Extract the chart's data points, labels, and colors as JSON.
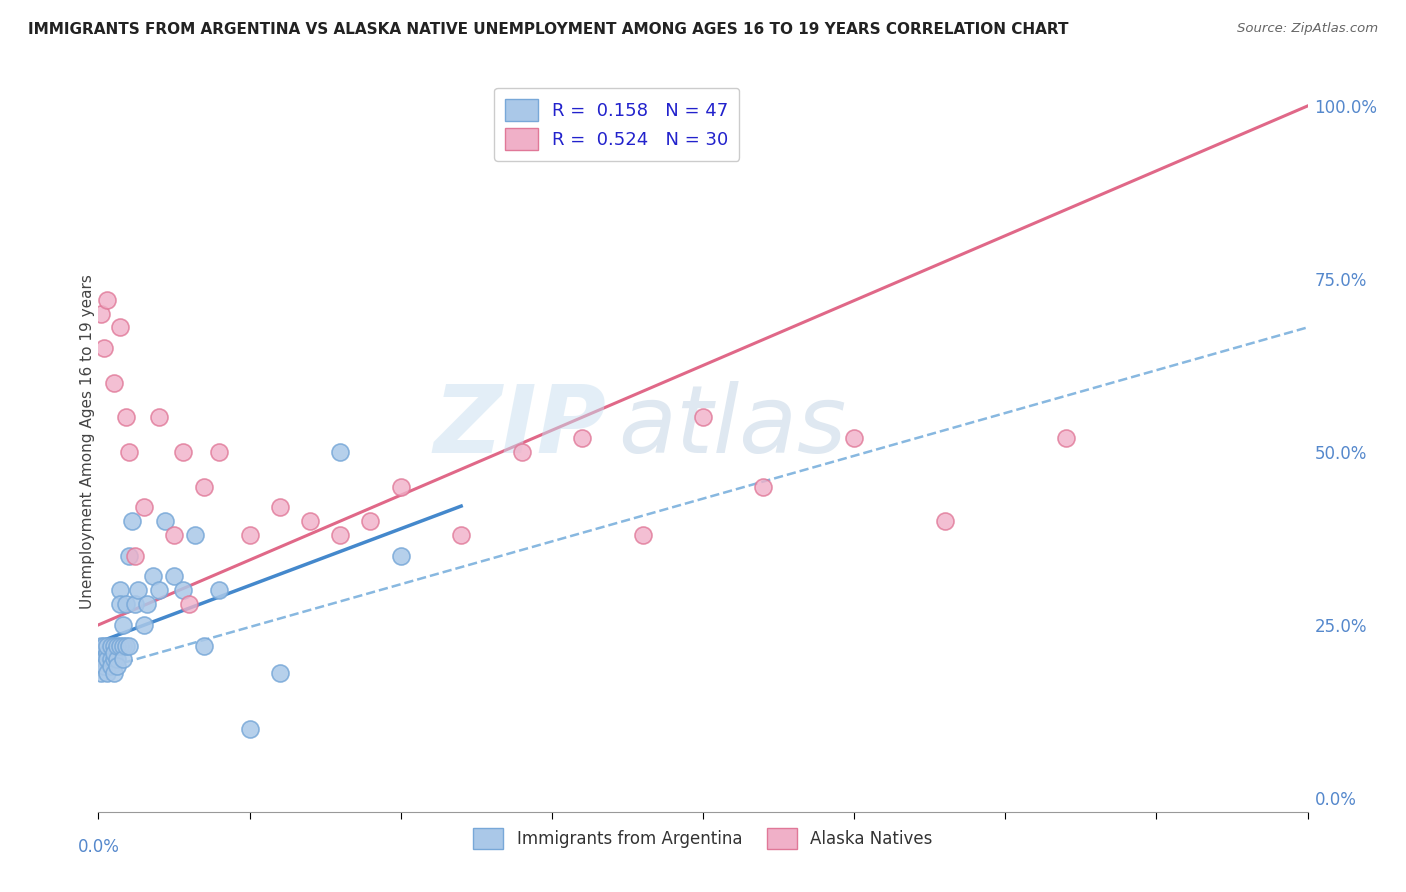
{
  "title": "IMMIGRANTS FROM ARGENTINA VS ALASKA NATIVE UNEMPLOYMENT AMONG AGES 16 TO 19 YEARS CORRELATION CHART",
  "source": "Source: ZipAtlas.com",
  "ylabel": "Unemployment Among Ages 16 to 19 years",
  "xlim": [
    0.0,
    0.4
  ],
  "ylim": [
    -0.02,
    1.05
  ],
  "right_yticks": [
    0.0,
    0.25,
    0.5,
    0.75,
    1.0
  ],
  "right_yticklabels": [
    "0.0%",
    "25.0%",
    "50.0%",
    "75.0%",
    "100.0%"
  ],
  "blue_color": "#aac8e8",
  "blue_edge": "#78a8d8",
  "pink_color": "#f0b0c8",
  "pink_edge": "#e07898",
  "blue_line_color": "#88b8e0",
  "pink_line_color": "#e06888",
  "R_blue": 0.158,
  "N_blue": 47,
  "R_pink": 0.524,
  "N_pink": 30,
  "grid_color": "#cccccc",
  "blue_scatter_x": [
    0.001,
    0.001,
    0.001,
    0.002,
    0.002,
    0.002,
    0.003,
    0.003,
    0.003,
    0.003,
    0.004,
    0.004,
    0.004,
    0.005,
    0.005,
    0.005,
    0.005,
    0.006,
    0.006,
    0.006,
    0.007,
    0.007,
    0.007,
    0.008,
    0.008,
    0.008,
    0.009,
    0.009,
    0.01,
    0.01,
    0.011,
    0.012,
    0.013,
    0.015,
    0.016,
    0.018,
    0.02,
    0.022,
    0.025,
    0.028,
    0.032,
    0.035,
    0.04,
    0.05,
    0.06,
    0.08,
    0.1
  ],
  "blue_scatter_y": [
    0.2,
    0.22,
    0.18,
    0.2,
    0.22,
    0.19,
    0.21,
    0.2,
    0.22,
    0.18,
    0.2,
    0.22,
    0.19,
    0.2,
    0.22,
    0.18,
    0.21,
    0.2,
    0.22,
    0.19,
    0.3,
    0.28,
    0.22,
    0.25,
    0.22,
    0.2,
    0.28,
    0.22,
    0.35,
    0.22,
    0.4,
    0.28,
    0.3,
    0.25,
    0.28,
    0.32,
    0.3,
    0.4,
    0.32,
    0.3,
    0.38,
    0.22,
    0.3,
    0.1,
    0.18,
    0.5,
    0.35
  ],
  "pink_scatter_x": [
    0.001,
    0.002,
    0.003,
    0.005,
    0.007,
    0.009,
    0.01,
    0.012,
    0.015,
    0.02,
    0.025,
    0.028,
    0.03,
    0.035,
    0.04,
    0.05,
    0.06,
    0.07,
    0.08,
    0.09,
    0.1,
    0.12,
    0.14,
    0.16,
    0.18,
    0.2,
    0.22,
    0.25,
    0.28,
    0.32
  ],
  "pink_scatter_y": [
    0.7,
    0.65,
    0.72,
    0.6,
    0.68,
    0.55,
    0.5,
    0.35,
    0.42,
    0.55,
    0.38,
    0.5,
    0.28,
    0.45,
    0.5,
    0.38,
    0.42,
    0.4,
    0.38,
    0.4,
    0.45,
    0.38,
    0.5,
    0.52,
    0.38,
    0.55,
    0.45,
    0.52,
    0.4,
    0.52
  ],
  "pink_line_x0": 0.0,
  "pink_line_y0": 0.25,
  "pink_line_x1": 0.4,
  "pink_line_y1": 1.0,
  "blue_line_x0": 0.0,
  "blue_line_y0": 0.185,
  "blue_line_x1": 0.4,
  "blue_line_y1": 0.68
}
